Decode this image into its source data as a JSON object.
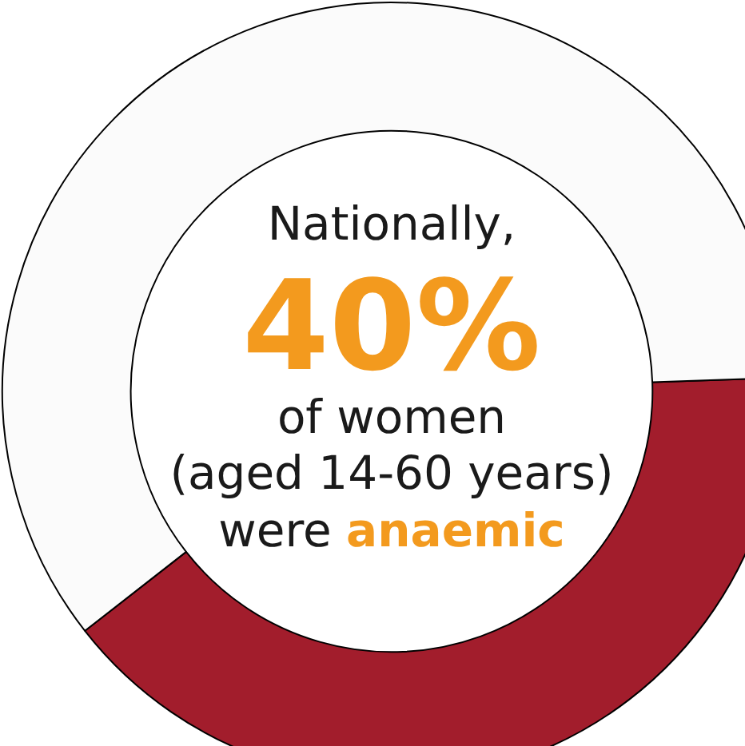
{
  "chart_data": {
    "type": "donut",
    "categories": [
      null,
      null
    ],
    "values": [
      40,
      60
    ],
    "colors": [
      "#a21d2c",
      "#fbfbfb"
    ],
    "annotations": [
      "Nationally,",
      "40%",
      "of women",
      "(aged 14-60 years)",
      "were",
      "anaemic"
    ],
    "legend": false
  }
}
